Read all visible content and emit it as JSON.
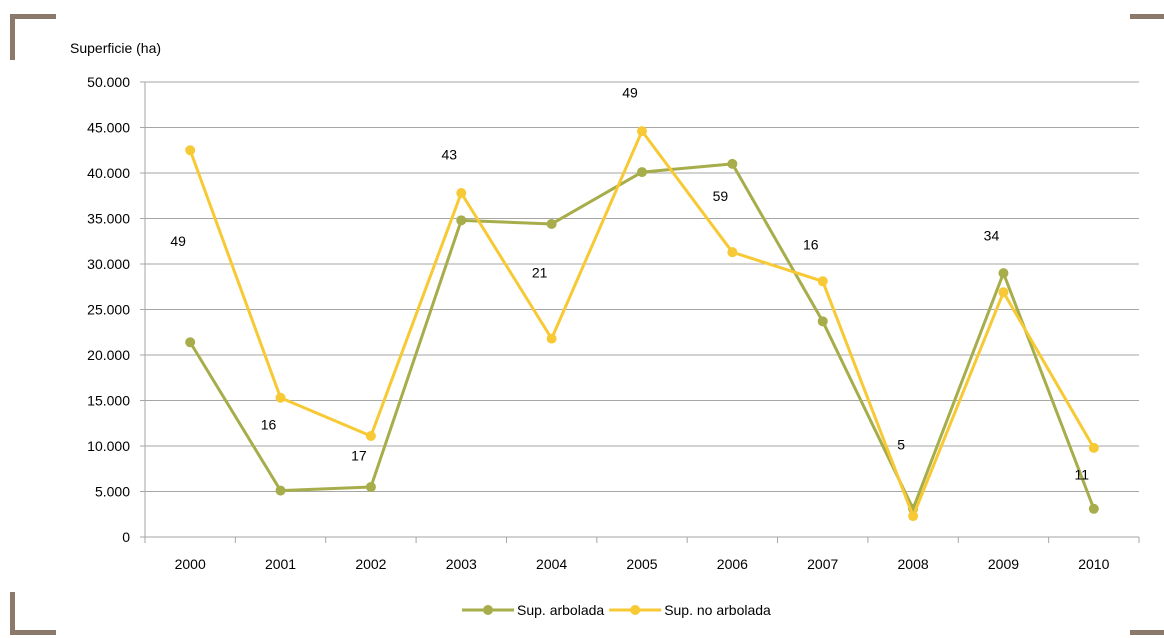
{
  "chart_data": {
    "type": "line",
    "ylabel": "Superficie (ha)",
    "categories": [
      "2000",
      "2001",
      "2002",
      "2003",
      "2004",
      "2005",
      "2006",
      "2007",
      "2008",
      "2009",
      "2010"
    ],
    "ylim": [
      0,
      50000
    ],
    "yticks": [
      "0",
      "5.000",
      "10.000",
      "15.000",
      "20.000",
      "25.000",
      "30.000",
      "35.000",
      "40.000",
      "45.000",
      "50.000"
    ],
    "grid": true,
    "legend_position": "bottom",
    "series": [
      {
        "name": "Sup. arbolada",
        "color": "#a6ad4a",
        "values": [
          21400,
          5100,
          5500,
          34800,
          34400,
          40100,
          41000,
          23700,
          3100,
          29000,
          3100
        ]
      },
      {
        "name": "Sup. no arbolada",
        "color": "#f7c934",
        "values": [
          42500,
          15300,
          11100,
          37800,
          21800,
          44600,
          31300,
          28100,
          2300,
          26900,
          9800
        ]
      }
    ],
    "annotations": [
      {
        "category": "2000",
        "y": 32000,
        "text": "49"
      },
      {
        "category": "2001",
        "y": 11800,
        "text": "16"
      },
      {
        "category": "2002",
        "y": 8400,
        "text": "17"
      },
      {
        "category": "2003",
        "y": 41500,
        "text": "43"
      },
      {
        "category": "2004",
        "y": 28500,
        "text": "21"
      },
      {
        "category": "2005",
        "y": 48300,
        "text": "49"
      },
      {
        "category": "2006",
        "y": 36900,
        "text": "59"
      },
      {
        "category": "2007",
        "y": 31600,
        "text": "16"
      },
      {
        "category": "2008",
        "y": 9600,
        "text": "5"
      },
      {
        "category": "2009",
        "y": 32600,
        "text": "34"
      },
      {
        "category": "2010",
        "y": 6300,
        "text": "11"
      }
    ]
  }
}
